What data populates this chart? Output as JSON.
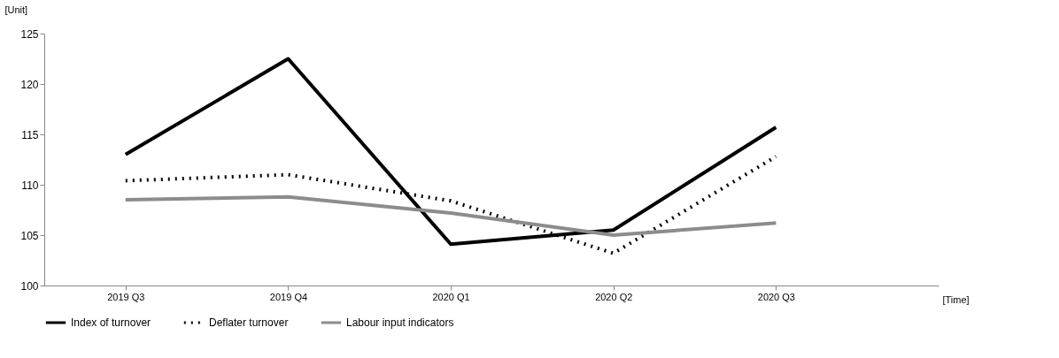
{
  "chart_data": {
    "type": "line",
    "xlabel": "[Time]",
    "ylabel": "[Unit]",
    "categories": [
      "2019 Q3",
      "2019 Q4",
      "2020 Q1",
      "2020 Q2",
      "2020 Q3"
    ],
    "ylim": [
      100,
      125
    ],
    "yticks": [
      100,
      105,
      110,
      115,
      120,
      125
    ],
    "grid": false,
    "legend": "bottom",
    "marker": "none",
    "series": [
      {
        "name": "Index of turnover",
        "color": "#000000",
        "line_style": "solid",
        "values": [
          113.0,
          122.5,
          104.1,
          105.5,
          115.7
        ]
      },
      {
        "name": "Deflater turnover",
        "color": "#000000",
        "line_style": "dotted",
        "values": [
          110.4,
          111.0,
          108.4,
          103.2,
          112.8
        ]
      },
      {
        "name": "Labour input indicators",
        "color": "#8c8c8c",
        "line_style": "solid",
        "values": [
          108.5,
          108.8,
          107.2,
          105.0,
          106.2
        ]
      }
    ]
  }
}
